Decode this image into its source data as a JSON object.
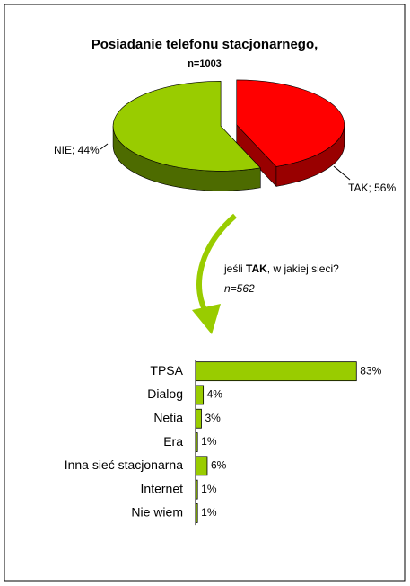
{
  "chart_data": [
    {
      "type": "pie",
      "title": "Posiadanie telefonu stacjonarnego,",
      "subtitle": "n=1003",
      "categories": [
        "NIE",
        "TAK"
      ],
      "values": [
        44,
        56
      ],
      "value_labels": [
        "NIE; 44%",
        "TAK; 56%"
      ],
      "colors": [
        "#ff0000",
        "#99cc00"
      ],
      "side_colors": [
        "#990000",
        "#4d6b00"
      ]
    },
    {
      "type": "hbar",
      "annotations": [
        "jeśli ",
        "TAK",
        ", w jakiej sieci?",
        "n=562"
      ],
      "categories": [
        "TPSA",
        "Dialog",
        "Netia",
        "Era",
        "Inna sieć stacjonarna",
        "Internet",
        "Nie wiem"
      ],
      "values": [
        83,
        4,
        3,
        1,
        6,
        1,
        1
      ],
      "value_labels": [
        "83%",
        "4%",
        "3%",
        "1%",
        "6%",
        "1%",
        "1%"
      ],
      "color": "#99cc00"
    }
  ]
}
